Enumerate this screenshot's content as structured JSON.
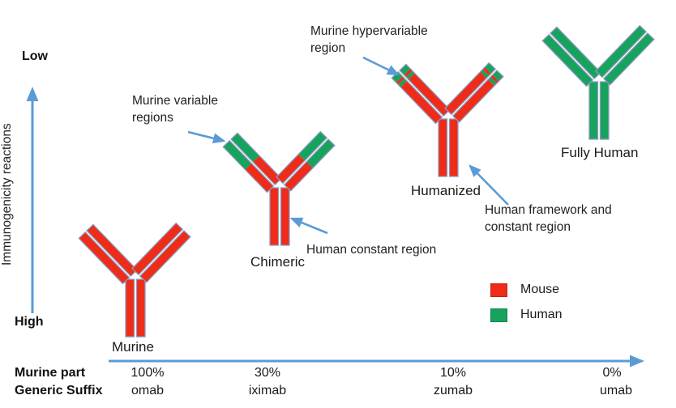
{
  "colors": {
    "mouse": "#ee2c18",
    "human": "#17a35c",
    "arrow": "#5b9bd5",
    "border": "#8c9ac0"
  },
  "y_axis": {
    "title": "Immunogenicity reactions",
    "top_label": "Low",
    "bottom_label": "High"
  },
  "annotations": [
    {
      "id": "murine-variable",
      "text": "Murine variable\nregions"
    },
    {
      "id": "murine-hypervariable",
      "text": "Murine hypervariable\nregion"
    },
    {
      "id": "human-constant",
      "text": "Human constant region"
    },
    {
      "id": "human-framework",
      "text": "Human framework and\nconstant region"
    }
  ],
  "antibodies": [
    {
      "id": "murine",
      "label": "Murine",
      "stem": "mouse",
      "arm_segments": [
        [
          "mouse",
          1
        ]
      ]
    },
    {
      "id": "chimeric",
      "label": "Chimeric",
      "stem": "mouse",
      "arm_segments": [
        [
          "human",
          0.5
        ],
        [
          "mouse",
          0.5
        ]
      ]
    },
    {
      "id": "humanized",
      "label": "Humanized",
      "stem": "mouse",
      "arm_segments": [
        [
          "human",
          0.1
        ],
        [
          "mouse",
          0.045
        ],
        [
          "human",
          0.055
        ],
        [
          "mouse",
          0.8
        ]
      ]
    },
    {
      "id": "fully-human",
      "label": "Fully Human",
      "stem": "human",
      "arm_segments": [
        [
          "human",
          1
        ]
      ]
    }
  ],
  "legend": {
    "items": [
      {
        "key": "mouse",
        "label": "Mouse"
      },
      {
        "key": "human",
        "label": "Human"
      }
    ]
  },
  "x_axis": {
    "row1_label": "Murine part",
    "row2_label": "Generic Suffix",
    "columns": [
      {
        "percent": "100%",
        "suffix": "omab"
      },
      {
        "percent": "30%",
        "suffix": "iximab"
      },
      {
        "percent": "10%",
        "suffix": "zumab"
      },
      {
        "percent": "0%",
        "suffix": "umab"
      }
    ]
  }
}
